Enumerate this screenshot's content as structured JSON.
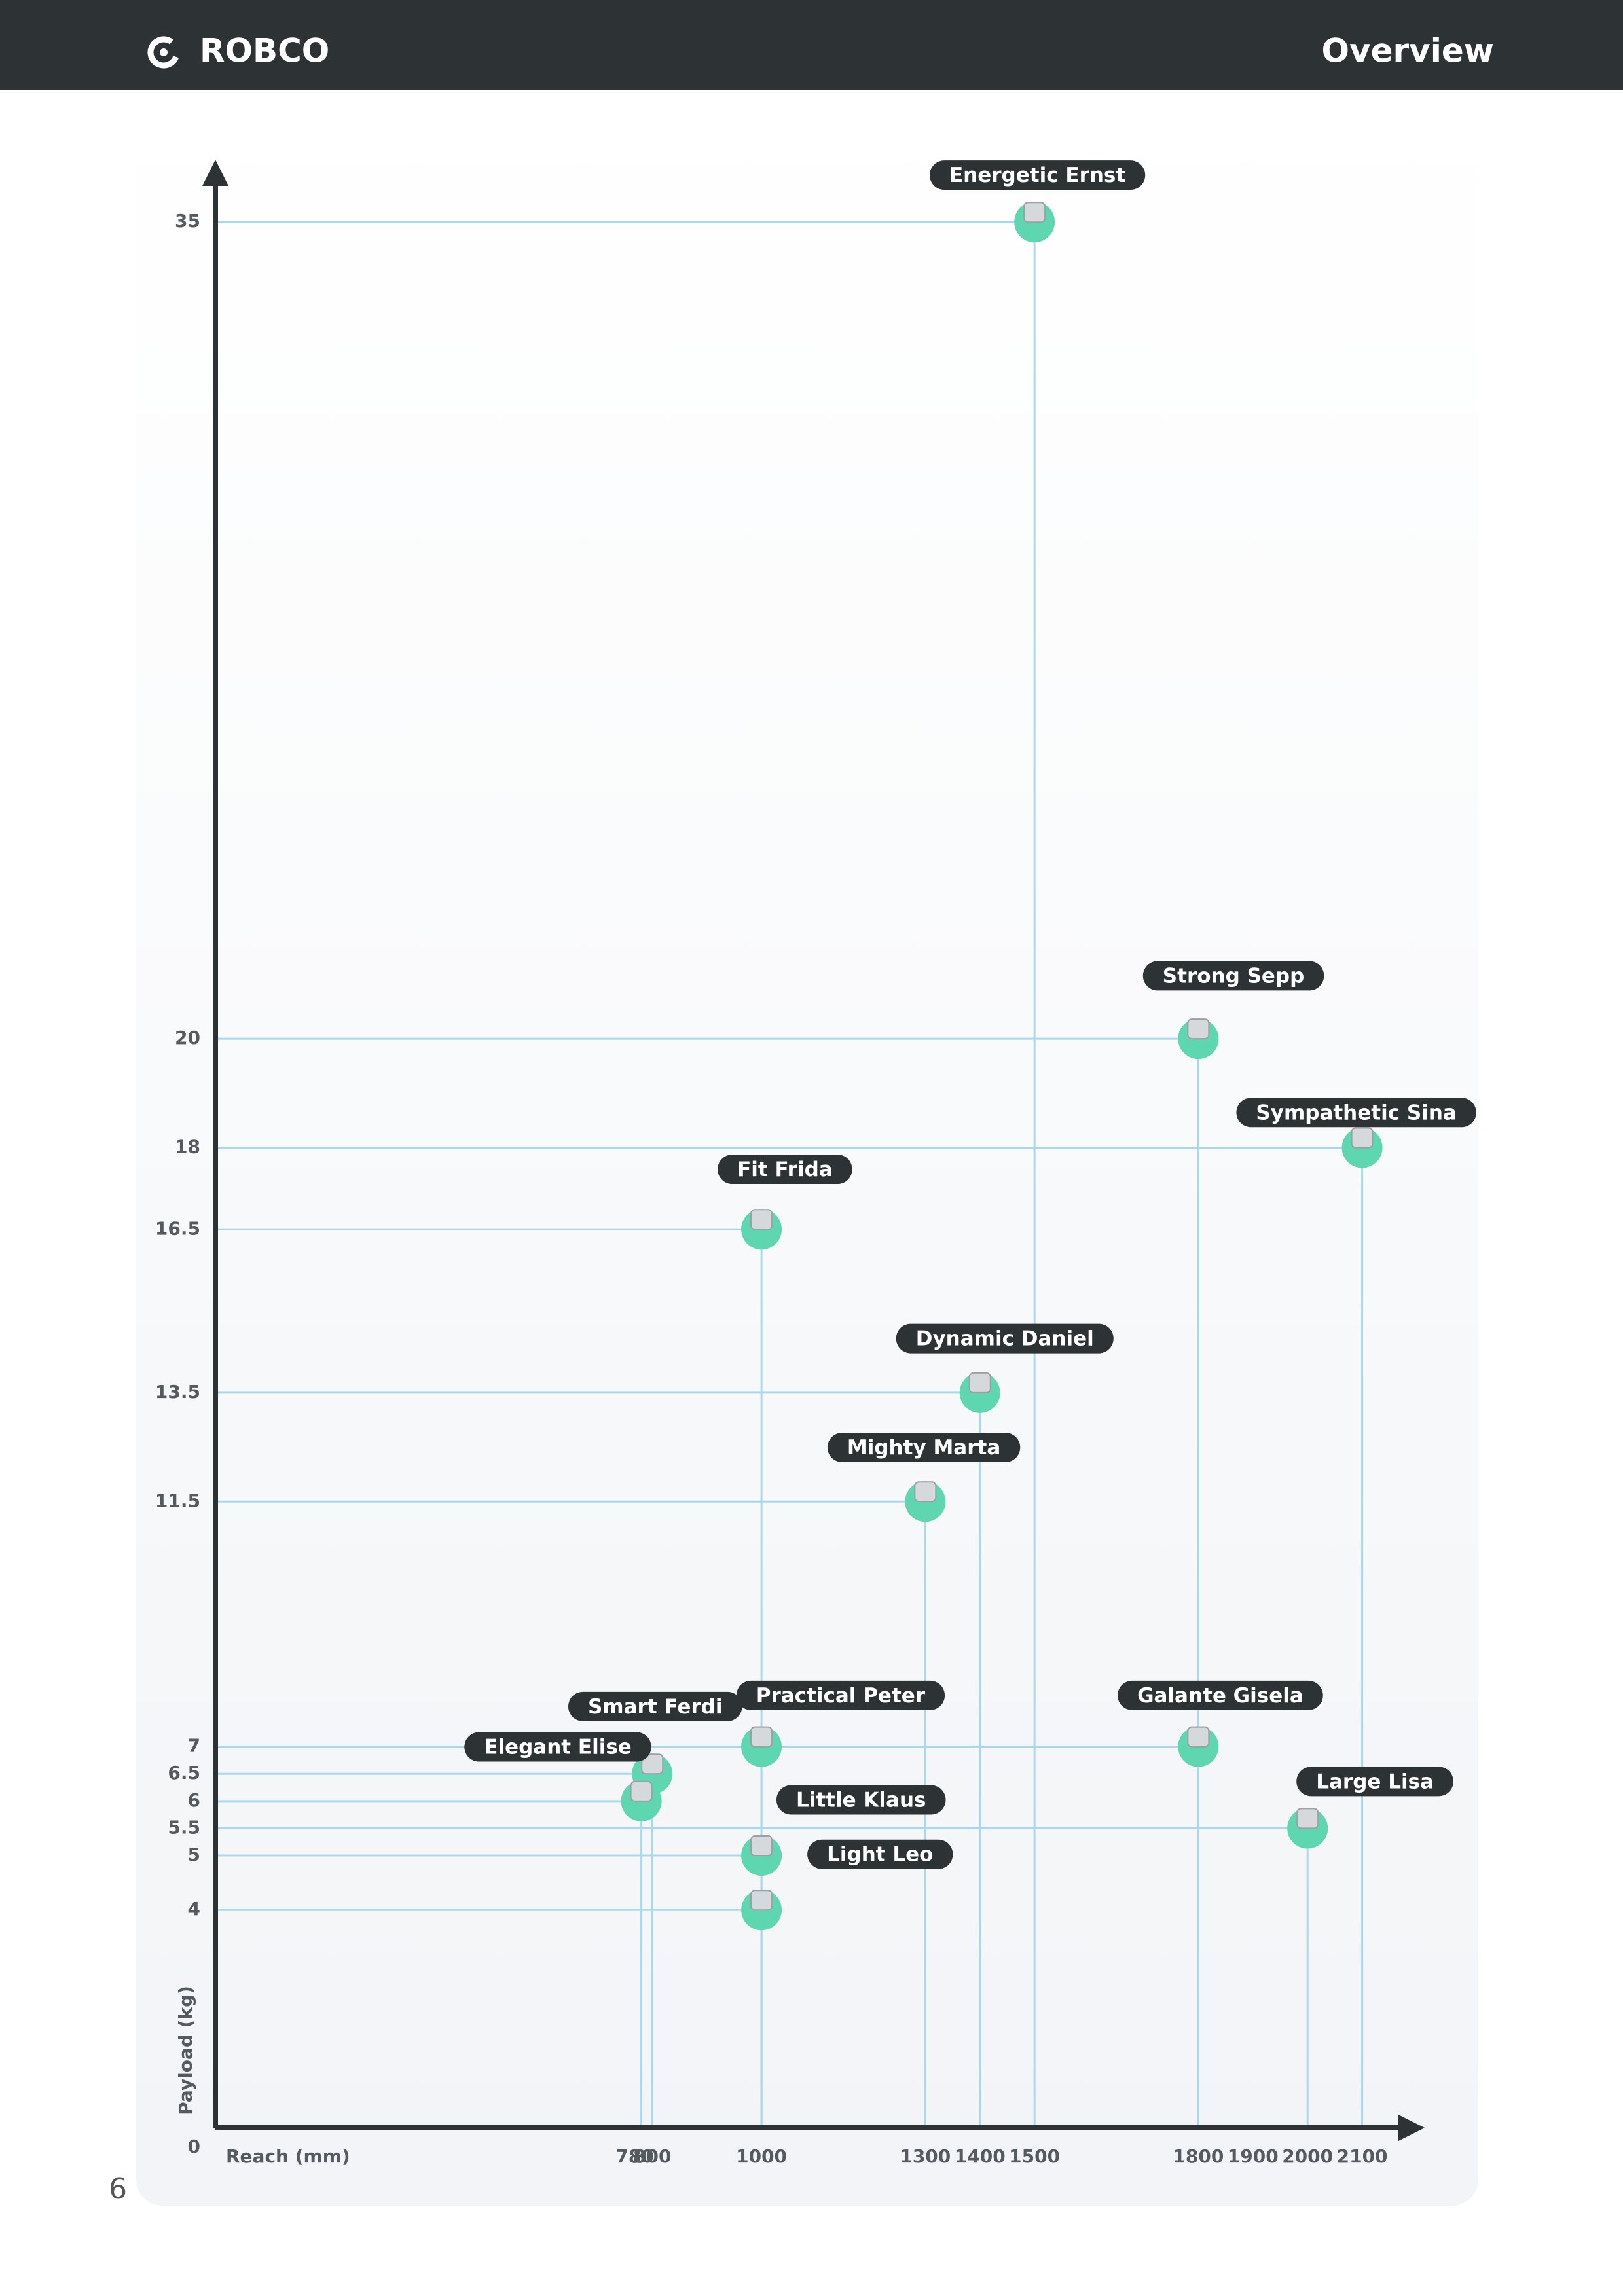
{
  "header": {
    "brand": "ROBCO",
    "section": "Overview"
  },
  "page_number": "6",
  "chart_data": {
    "type": "scatter",
    "x_label": "Reach (mm)",
    "y_label": "Payload (kg)",
    "labels": [
      "Energetic Ernst",
      "Strong Sepp",
      "Sympathetic Sina",
      "Fit Frida",
      "Dynamic Daniel",
      "Mighty Marta",
      "Practical Peter",
      "Galante Gisela",
      "Smart Ferdi",
      "Elegant Elise",
      "Large Lisa",
      "Little Klaus",
      "Light Leo"
    ],
    "x": [
      1500,
      1800,
      2100,
      1000,
      1400,
      1300,
      1000,
      1800,
      800,
      780,
      2000,
      1000,
      1000
    ],
    "values": [
      35,
      20,
      18,
      16.5,
      13.5,
      11.5,
      7,
      7,
      6.5,
      6,
      5.5,
      5,
      4
    ],
    "color": "#5ed6b0",
    "xlim": [
      0,
      2200
    ],
    "ylim": [
      0,
      36
    ],
    "xticks": [
      780,
      800,
      1000,
      1300,
      1400,
      1500,
      1800,
      1900,
      2000,
      2100
    ],
    "yticks": [
      0,
      4,
      5,
      5.5,
      6,
      6.5,
      7,
      11.5,
      13.5,
      16.5,
      18,
      20,
      35
    ]
  }
}
